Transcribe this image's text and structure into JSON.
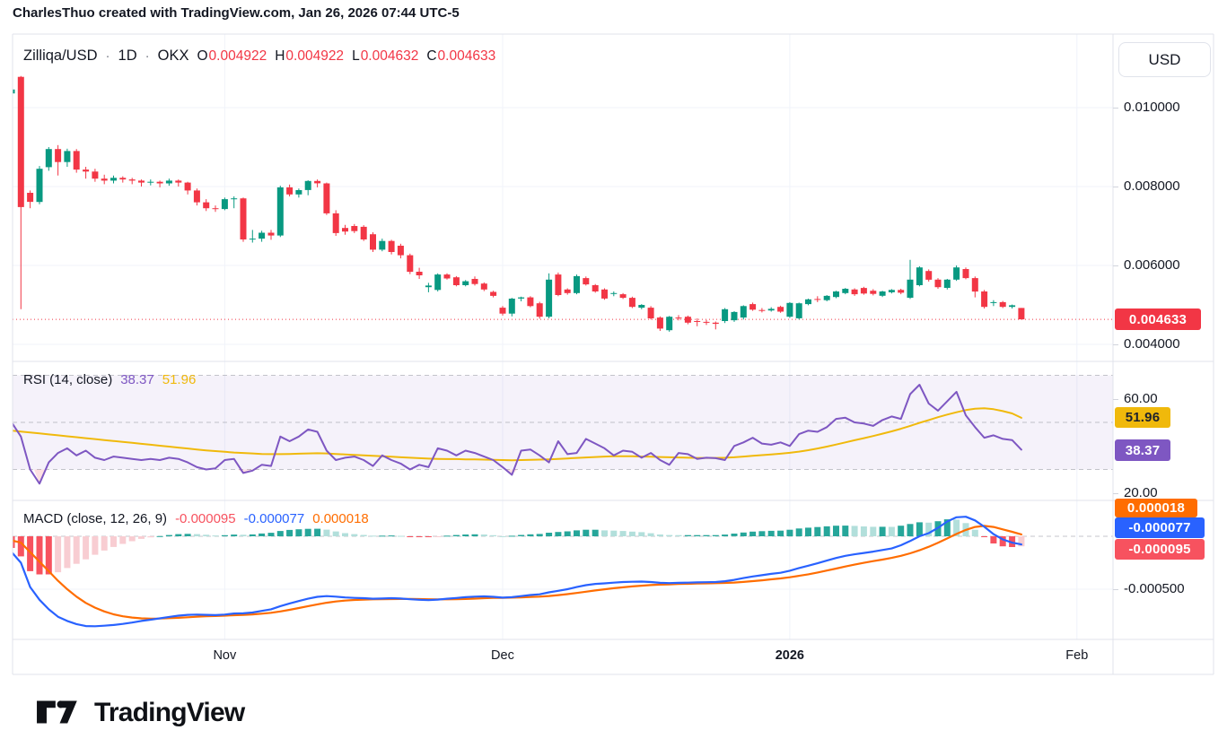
{
  "header": {
    "attribution": "CharlesThuo created with TradingView.com, Jan 26, 2026 07:44 UTC-5"
  },
  "main": {
    "symbol": "Zilliqa/USD",
    "separator": "·",
    "interval": "1D",
    "exchange": "OKX",
    "ohlc": [
      {
        "k": "O",
        "v": "0.004922"
      },
      {
        "k": "H",
        "v": "0.004922"
      },
      {
        "k": "L",
        "v": "0.004632"
      },
      {
        "k": "C",
        "v": "0.004633"
      }
    ]
  },
  "price_axis": {
    "currency_button": "USD",
    "ticks": [
      {
        "label": "0.010000",
        "value": 1000
      },
      {
        "label": "0.008000",
        "value": 800
      },
      {
        "label": "0.006000",
        "value": 600
      },
      {
        "label": "0.004000",
        "value": 400
      }
    ],
    "last_price_label": "0.004633",
    "last_price_color": "#f23645"
  },
  "rsi": {
    "title": "RSI (14, close)",
    "value": "38.37",
    "ma_value": "51.96",
    "value_color": "#7e57c2",
    "ma_color": "#f0b90b",
    "ticks": [
      {
        "label": "60.00",
        "value": 60
      },
      {
        "label": "20.00",
        "value": 20
      }
    ]
  },
  "macd": {
    "title": "MACD (close, 12, 26, 9)",
    "hist_value": "-0.000095",
    "macd_value": "-0.000077",
    "signal_value": "0.000018",
    "hist_color": "#f7525f",
    "macd_color": "#2962ff",
    "signal_color": "#ff6d00",
    "ticks": [
      {
        "label": "-0.000500",
        "value": -500
      }
    ]
  },
  "time_axis": {
    "labels": [
      {
        "label": "Nov",
        "index": 23,
        "bold": false
      },
      {
        "label": "Dec",
        "index": 53,
        "bold": false
      },
      {
        "label": "2026",
        "index": 84,
        "bold": true
      },
      {
        "label": "Feb",
        "index": 115,
        "bold": false
      }
    ]
  },
  "footer": {
    "brand": "TradingView"
  },
  "chart_data": [
    {
      "type": "candlestick",
      "title": "Zilliqa/USD 1D OKX",
      "price_unit": 1e-05,
      "up_color": "#089981",
      "down_color": "#f23645",
      "grid": true,
      "price_line": {
        "value": 463.3,
        "style": "dotted",
        "color": "#f23645"
      },
      "ohlc": [
        [
          1036,
          1050,
          1028,
          1046
        ],
        [
          1078,
          1080,
          489,
          748
        ],
        [
          784,
          790,
          745,
          761
        ],
        [
          761,
          852,
          755,
          845
        ],
        [
          849,
          900,
          840,
          895
        ],
        [
          895,
          905,
          828,
          862
        ],
        [
          862,
          896,
          850,
          890
        ],
        [
          890,
          895,
          835,
          843
        ],
        [
          843,
          850,
          820,
          838
        ],
        [
          838,
          845,
          812,
          820
        ],
        [
          820,
          830,
          806,
          815
        ],
        [
          815,
          828,
          808,
          822
        ],
        [
          822,
          826,
          810,
          818
        ],
        [
          818,
          822,
          806,
          815
        ],
        [
          815,
          818,
          800,
          810
        ],
        [
          810,
          818,
          803,
          812
        ],
        [
          812,
          815,
          798,
          808
        ],
        [
          808,
          820,
          802,
          815
        ],
        [
          815,
          818,
          800,
          810
        ],
        [
          810,
          812,
          780,
          790
        ],
        [
          790,
          795,
          752,
          760
        ],
        [
          760,
          768,
          738,
          745
        ],
        [
          745,
          752,
          736,
          743
        ],
        [
          743,
          772,
          740,
          768
        ],
        [
          768,
          775,
          745,
          770
        ],
        [
          770,
          772,
          660,
          666
        ],
        [
          666,
          690,
          658,
          668
        ],
        [
          668,
          688,
          660,
          683
        ],
        [
          683,
          690,
          665,
          676
        ],
        [
          676,
          802,
          672,
          798
        ],
        [
          798,
          805,
          775,
          780
        ],
        [
          780,
          795,
          772,
          791
        ],
        [
          791,
          816,
          778,
          814
        ],
        [
          814,
          818,
          798,
          808
        ],
        [
          808,
          810,
          728,
          732
        ],
        [
          732,
          740,
          675,
          682
        ],
        [
          695,
          703,
          678,
          686
        ],
        [
          700,
          705,
          682,
          687
        ],
        [
          698,
          702,
          662,
          666
        ],
        [
          679,
          684,
          634,
          640
        ],
        [
          640,
          668,
          636,
          662
        ],
        [
          662,
          665,
          628,
          634
        ],
        [
          650,
          655,
          618,
          626
        ],
        [
          626,
          630,
          578,
          584
        ],
        [
          584,
          594,
          566,
          575
        ],
        [
          545,
          556,
          532,
          549
        ],
        [
          538,
          580,
          534,
          577
        ],
        [
          577,
          580,
          564,
          567
        ],
        [
          570,
          573,
          547,
          550
        ],
        [
          550,
          563,
          547,
          560
        ],
        [
          566,
          572,
          549,
          553
        ],
        [
          554,
          557,
          535,
          539
        ],
        [
          533,
          536,
          519,
          523
        ],
        [
          493,
          497,
          473,
          478
        ],
        [
          478,
          518,
          471,
          516
        ],
        [
          516,
          521,
          509,
          519
        ],
        [
          519,
          522,
          494,
          497
        ],
        [
          504,
          508,
          465,
          470
        ],
        [
          470,
          580,
          466,
          564
        ],
        [
          577,
          582,
          522,
          525
        ],
        [
          539,
          542,
          526,
          530
        ],
        [
          530,
          577,
          527,
          573
        ],
        [
          568,
          572,
          549,
          552
        ],
        [
          550,
          553,
          531,
          534
        ],
        [
          539,
          542,
          513,
          516
        ],
        [
          528,
          534,
          522,
          530
        ],
        [
          527,
          530,
          515,
          518
        ],
        [
          518,
          521,
          492,
          495
        ],
        [
          493,
          502,
          489,
          500
        ],
        [
          493,
          497,
          463,
          466
        ],
        [
          468,
          471,
          434,
          440
        ],
        [
          436,
          472,
          432,
          470
        ],
        [
          468,
          474,
          461,
          466
        ],
        [
          470,
          473,
          451,
          455
        ],
        [
          459,
          466,
          446,
          458
        ],
        [
          457,
          462,
          449,
          456
        ],
        [
          455,
          458,
          438,
          452
        ],
        [
          459,
          492,
          454,
          489
        ],
        [
          461,
          484,
          457,
          482
        ],
        [
          468,
          499,
          463,
          497
        ],
        [
          502,
          506,
          485,
          488
        ],
        [
          487,
          492,
          481,
          486
        ],
        [
          486,
          494,
          483,
          490
        ],
        [
          495,
          498,
          480,
          483
        ],
        [
          470,
          507,
          467,
          505
        ],
        [
          466,
          506,
          463,
          504
        ],
        [
          502,
          516,
          499,
          514
        ],
        [
          515,
          522,
          507,
          513
        ],
        [
          512,
          525,
          509,
          523
        ],
        [
          520,
          536,
          517,
          534
        ],
        [
          530,
          543,
          527,
          541
        ],
        [
          539,
          542,
          523,
          527
        ],
        [
          543,
          546,
          526,
          529
        ],
        [
          536,
          540,
          524,
          528
        ],
        [
          523,
          536,
          520,
          534
        ],
        [
          532,
          540,
          529,
          538
        ],
        [
          538,
          541,
          527,
          531
        ],
        [
          518,
          614,
          515,
          564
        ],
        [
          550,
          598,
          547,
          595
        ],
        [
          586,
          590,
          559,
          564
        ],
        [
          564,
          568,
          541,
          545
        ],
        [
          543,
          566,
          539,
          564
        ],
        [
          564,
          600,
          561,
          595
        ],
        [
          591,
          595,
          565,
          568
        ],
        [
          568,
          572,
          519,
          534
        ],
        [
          534,
          538,
          491,
          495
        ],
        [
          505,
          512,
          497,
          507
        ],
        [
          507,
          510,
          492,
          495
        ],
        [
          495,
          501,
          491,
          499
        ],
        [
          492.2,
          492.2,
          463.2,
          463.3
        ]
      ]
    },
    {
      "type": "line",
      "name": "RSI (14, close)",
      "levels": [
        70,
        50,
        30
      ],
      "band_fill": "rgba(126,87,194,0.08)",
      "series": [
        {
          "name": "RSI",
          "color": "#7e57c2",
          "last": 38.37,
          "values": [
            50,
            44,
            30,
            24,
            33,
            37,
            39,
            36,
            38,
            35,
            34,
            35.5,
            35,
            34.5,
            34,
            34.5,
            34,
            35,
            34.5,
            33,
            31,
            30,
            30.5,
            34,
            34.5,
            28.5,
            29.5,
            32,
            31.5,
            44,
            42,
            44,
            47,
            46,
            38,
            34,
            35,
            35.5,
            34,
            31.5,
            36,
            34,
            32.5,
            30,
            32,
            31,
            39,
            38,
            36,
            38,
            37,
            35.5,
            34,
            31,
            27.7,
            38,
            38.5,
            36,
            33,
            42,
            36.5,
            37,
            43,
            41,
            39,
            36,
            38,
            37.5,
            35,
            37,
            34,
            32,
            37,
            36.5,
            34.5,
            35,
            34.8,
            34,
            40,
            41.5,
            43.5,
            41,
            40.5,
            41.5,
            40,
            45,
            46.5,
            46,
            48,
            51.5,
            52,
            50,
            49.5,
            48.5,
            51,
            52.5,
            51.5,
            62,
            66,
            58,
            55,
            59,
            63,
            53,
            48,
            43.5,
            44.5,
            43,
            42.5,
            38.4
          ]
        },
        {
          "name": "RSI-based MA",
          "color": "#f0b90b",
          "last": 51.96,
          "values": [
            46.5,
            46.1,
            45.7,
            45.3,
            44.9,
            44.5,
            44.1,
            43.7,
            43.3,
            42.9,
            42.5,
            42.1,
            41.7,
            41.3,
            40.9,
            40.5,
            40.1,
            39.7,
            39.3,
            38.9,
            38.5,
            38.1,
            37.8,
            37.5,
            37.2,
            37.0,
            36.8,
            36.6,
            36.5,
            36.5,
            36.6,
            36.7,
            36.8,
            36.9,
            36.8,
            36.6,
            36.4,
            36.2,
            36.0,
            35.8,
            35.6,
            35.4,
            35.2,
            35.0,
            34.8,
            34.6,
            34.5,
            34.4,
            34.4,
            34.3,
            34.3,
            34.2,
            34.1,
            34.0,
            33.9,
            34.0,
            34.1,
            34.2,
            34.3,
            34.5,
            34.7,
            34.9,
            35.1,
            35.3,
            35.5,
            35.6,
            35.6,
            35.6,
            35.5,
            35.4,
            35.3,
            35.2,
            35.1,
            35.0,
            34.9,
            34.9,
            34.9,
            35.0,
            35.2,
            35.5,
            35.8,
            36.1,
            36.4,
            36.7,
            37.1,
            37.6,
            38.2,
            38.9,
            39.7,
            40.6,
            41.5,
            42.4,
            43.3,
            44.2,
            45.2,
            46.2,
            47.3,
            48.5,
            49.8,
            51.0,
            52.2,
            53.3,
            54.3,
            55.2,
            55.8,
            56.0,
            55.6,
            54.8,
            53.8,
            51.96
          ]
        }
      ]
    },
    {
      "type": "macd",
      "name": "MACD (close, 12, 26, 9)",
      "value_unit": 1e-06,
      "zero_line": 0,
      "histogram": "macd_minus_signal",
      "hist_colors": {
        "up_grow": "#26a69a",
        "up_fall": "#b2dfdb",
        "down_grow": "#f7525f",
        "down_fall": "#f8cdd2"
      },
      "series": [
        {
          "name": "MACD",
          "color": "#2962ff",
          "last": -77,
          "values": [
            -150,
            -250,
            -480,
            -600,
            -690,
            -760,
            -800,
            -830,
            -848,
            -850,
            -845,
            -838,
            -828,
            -815,
            -800,
            -788,
            -775,
            -762,
            -750,
            -742,
            -740,
            -742,
            -745,
            -740,
            -730,
            -728,
            -720,
            -705,
            -690,
            -660,
            -635,
            -612,
            -590,
            -572,
            -565,
            -570,
            -578,
            -582,
            -585,
            -590,
            -588,
            -585,
            -588,
            -595,
            -600,
            -603,
            -598,
            -590,
            -583,
            -575,
            -570,
            -568,
            -572,
            -580,
            -575,
            -565,
            -555,
            -548,
            -530,
            -515,
            -500,
            -480,
            -462,
            -450,
            -445,
            -438,
            -432,
            -430,
            -428,
            -432,
            -440,
            -442,
            -440,
            -438,
            -436,
            -434,
            -432,
            -425,
            -412,
            -395,
            -380,
            -368,
            -355,
            -345,
            -325,
            -300,
            -278,
            -255,
            -230,
            -205,
            -185,
            -170,
            -158,
            -145,
            -130,
            -115,
            -85,
            -45,
            0,
            30,
            80,
            140,
            180,
            185,
            150,
            90,
            20,
            -30,
            -60,
            -77
          ]
        },
        {
          "name": "Signal",
          "color": "#ff6d00",
          "last": 18,
          "values": [
            -40,
            -60,
            -150,
            -240,
            -330,
            -420,
            -500,
            -570,
            -630,
            -675,
            -710,
            -737,
            -756,
            -768,
            -775,
            -778,
            -777,
            -774,
            -770,
            -765,
            -760,
            -756,
            -753,
            -750,
            -746,
            -742,
            -738,
            -731,
            -723,
            -710,
            -695,
            -678,
            -660,
            -643,
            -628,
            -616,
            -608,
            -602,
            -598,
            -596,
            -594,
            -593,
            -592,
            -592,
            -593,
            -595,
            -596,
            -596,
            -595,
            -592,
            -589,
            -585,
            -582,
            -581,
            -580,
            -578,
            -574,
            -570,
            -564,
            -556,
            -547,
            -536,
            -524,
            -512,
            -501,
            -491,
            -482,
            -474,
            -467,
            -461,
            -457,
            -454,
            -451,
            -449,
            -447,
            -445,
            -443,
            -441,
            -437,
            -431,
            -424,
            -416,
            -407,
            -398,
            -387,
            -374,
            -359,
            -342,
            -324,
            -305,
            -286,
            -268,
            -251,
            -235,
            -220,
            -204,
            -185,
            -161,
            -132,
            -99,
            -62,
            -20,
            22,
            60,
            88,
            98,
            88,
            65,
            42,
            18
          ]
        }
      ]
    }
  ]
}
